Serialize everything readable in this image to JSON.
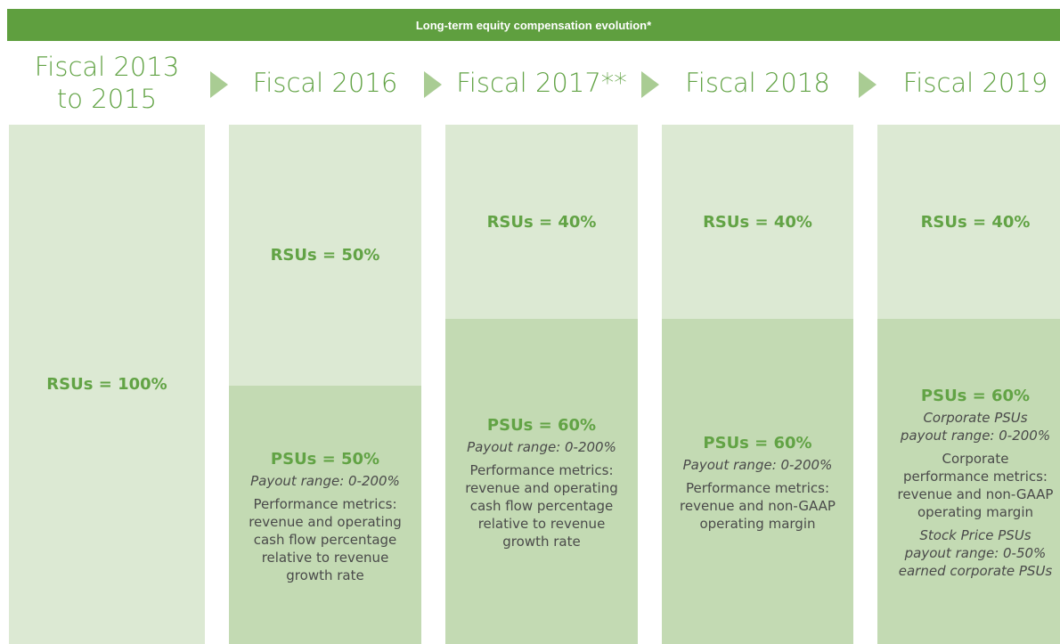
{
  "title": "Long-term equity compensation evolution*",
  "columns": [
    {
      "header": [
        "Fiscal 2013",
        "to 2015"
      ],
      "segments": [
        {
          "label": "RSUs = 100%"
        }
      ]
    },
    {
      "header": [
        "Fiscal 2016"
      ],
      "segments": [
        {
          "label": "RSUs = 50%"
        },
        {
          "label": "PSUs = 50%",
          "lines": [
            {
              "text": "Payout range: 0-200%",
              "style": "italic"
            },
            {
              "text": "Performance metrics:"
            },
            {
              "text": "revenue and operating"
            },
            {
              "text": "cash flow percentage"
            },
            {
              "text": "relative to revenue"
            },
            {
              "text": "growth rate"
            }
          ]
        }
      ]
    },
    {
      "header": [
        "Fiscal 2017**"
      ],
      "segments": [
        {
          "label": "RSUs = 40%"
        },
        {
          "label": "PSUs = 60%",
          "lines": [
            {
              "text": "Payout range: 0-200%",
              "style": "italic"
            },
            {
              "text": "Performance metrics:"
            },
            {
              "text": "revenue and operating"
            },
            {
              "text": "cash flow percentage"
            },
            {
              "text": "relative to revenue"
            },
            {
              "text": "growth rate"
            }
          ]
        }
      ]
    },
    {
      "header": [
        "Fiscal 2018"
      ],
      "segments": [
        {
          "label": "RSUs = 40%"
        },
        {
          "label": "PSUs = 60%",
          "lines": [
            {
              "text": "Payout range: 0-200%",
              "style": "italic"
            },
            {
              "text": "Performance metrics:"
            },
            {
              "text": "revenue and non-GAAP"
            },
            {
              "text": "operating margin"
            }
          ]
        }
      ]
    },
    {
      "header": [
        "Fiscal 2019"
      ],
      "segments": [
        {
          "label": "RSUs = 40%"
        },
        {
          "label": "PSUs = 60%",
          "lines": [
            {
              "text": "Corporate PSUs",
              "style": "italic"
            },
            {
              "text": "payout range: 0-200%",
              "style": "italic"
            },
            {
              "text": "Corporate"
            },
            {
              "text": "performance metrics:"
            },
            {
              "text": "revenue and non-GAAP"
            },
            {
              "text": "operating margin"
            },
            {
              "text": "Stock Price PSUs",
              "style": "italic"
            },
            {
              "text": "payout range: 0-50%",
              "style": "italic"
            },
            {
              "text": "earned corporate PSUs",
              "style": "italic"
            }
          ]
        }
      ]
    }
  ]
}
